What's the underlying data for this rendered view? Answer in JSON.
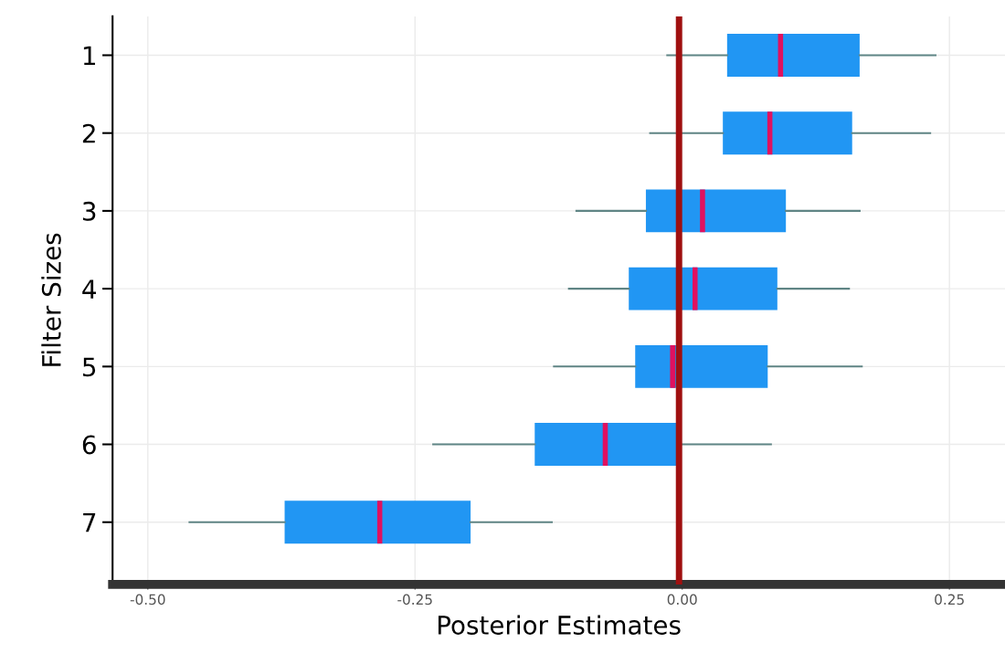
{
  "chart_data": {
    "type": "box",
    "orientation": "horizontal",
    "xlabel": "Posterior Estimates",
    "ylabel": "Filter Sizes",
    "categories": [
      "1",
      "2",
      "3",
      "4",
      "5",
      "6",
      "7"
    ],
    "color": "#2196f3",
    "boxes": [
      {
        "low": -0.014,
        "q1": 0.042,
        "median": 0.092,
        "q3": 0.166,
        "high": 0.237
      },
      {
        "low": -0.03,
        "q1": 0.038,
        "median": 0.082,
        "q3": 0.159,
        "high": 0.232
      },
      {
        "low": -0.099,
        "q1": -0.034,
        "median": 0.019,
        "q3": 0.097,
        "high": 0.166
      },
      {
        "low": -0.106,
        "q1": -0.05,
        "median": 0.012,
        "q3": 0.089,
        "high": 0.156
      },
      {
        "low": -0.12,
        "q1": -0.044,
        "median": -0.009,
        "q3": 0.08,
        "high": 0.168
      },
      {
        "low": -0.233,
        "q1": -0.138,
        "median": -0.072,
        "q3": -0.003,
        "high": 0.083
      },
      {
        "low": -0.461,
        "q1": -0.372,
        "median": -0.283,
        "q3": -0.198,
        "high": -0.122
      }
    ],
    "xlim": [
      -0.533,
      0.302
    ],
    "xticks": [
      {
        "value": -0.5,
        "label": "-0.50"
      },
      {
        "value": -0.25,
        "label": "-0.25"
      },
      {
        "value": 0,
        "label": "0.00"
      },
      {
        "value": 0.25,
        "label": "0.25"
      }
    ],
    "ref_lines": [
      {
        "axis": "x",
        "value": -0.003,
        "color": "#a01010"
      }
    ],
    "grid": true
  }
}
